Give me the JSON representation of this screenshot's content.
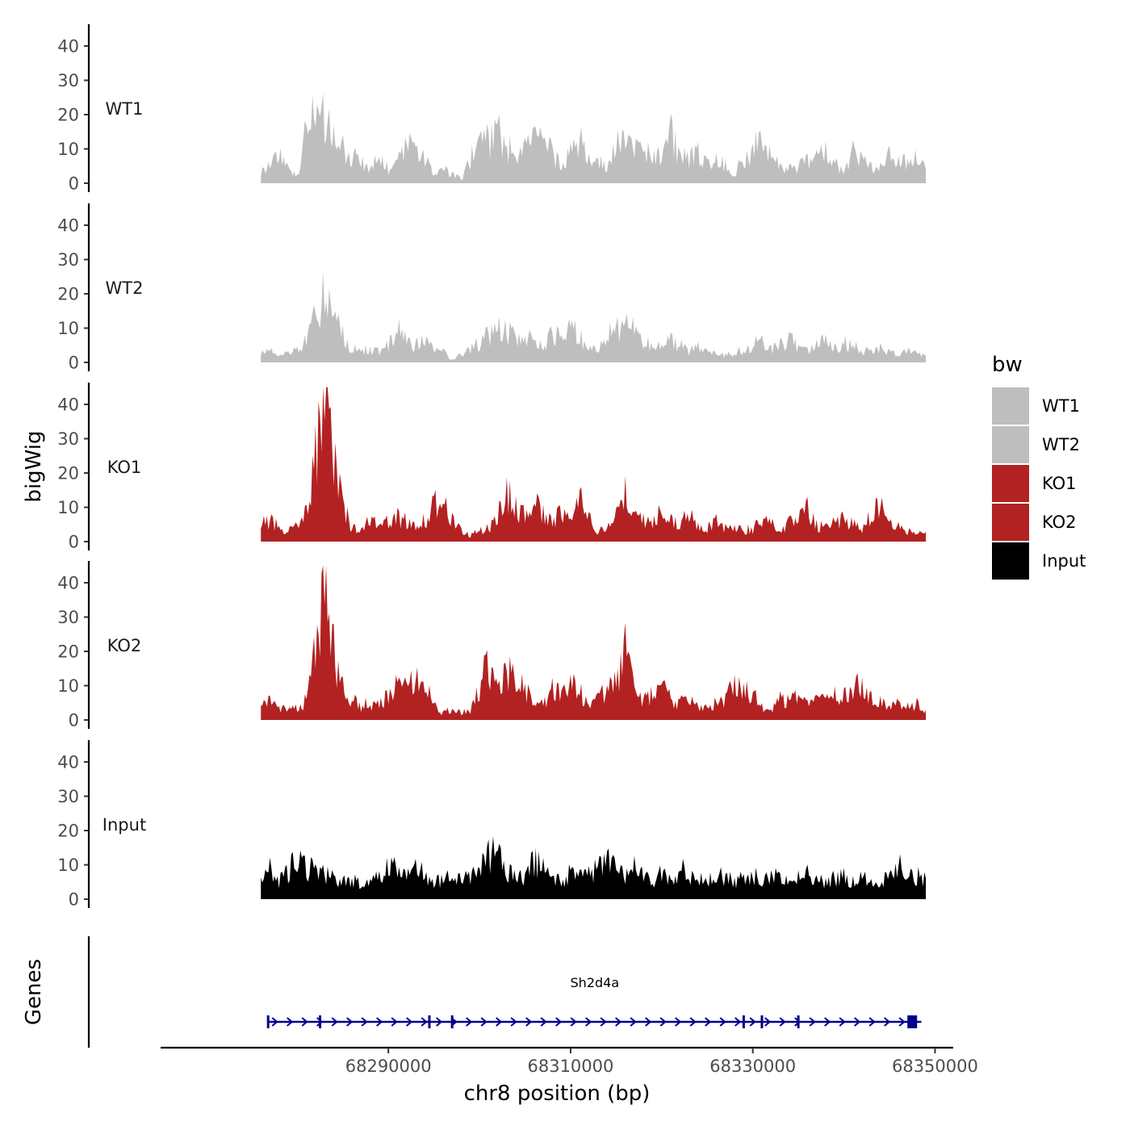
{
  "chart_data": {
    "type": "area",
    "title": "",
    "chromosome": "chr8",
    "xlabel": "chr8 position (bp)",
    "ylabel": "bigWig",
    "genes_label": "Genes",
    "xlim": [
      68265000,
      68352000
    ],
    "data_range": [
      68276000,
      68349000
    ],
    "ylim": [
      0,
      45
    ],
    "x_ticks": [
      68290000,
      68310000,
      68330000,
      68350000
    ],
    "x_tick_labels": [
      "68290000",
      "68310000",
      "68330000",
      "68350000"
    ],
    "y_ticks": [
      0,
      10,
      20,
      30,
      40
    ],
    "y_tick_labels": [
      "0",
      "10",
      "20",
      "30",
      "40"
    ],
    "legend": {
      "title": "bw",
      "position": "right",
      "items": [
        {
          "label": "WT1",
          "color": "#bebebe"
        },
        {
          "label": "WT2",
          "color": "#bebebe"
        },
        {
          "label": "KO1",
          "color": "#b22222"
        },
        {
          "label": "KO2",
          "color": "#b22222"
        },
        {
          "label": "Input",
          "color": "#000000"
        }
      ]
    },
    "series": [
      {
        "name": "WT1",
        "color": "#bebebe",
        "x": [
          68276000,
          68277000,
          68278000,
          68279000,
          68280000,
          68281000,
          68282000,
          68283000,
          68284000,
          68285000,
          68286000,
          68287000,
          68288000,
          68289000,
          68290000,
          68291000,
          68292000,
          68293000,
          68294000,
          68295000,
          68296000,
          68297000,
          68298000,
          68299000,
          68300000,
          68301000,
          68302000,
          68303000,
          68304000,
          68305000,
          68306000,
          68307000,
          68308000,
          68309000,
          68310000,
          68311000,
          68312000,
          68313000,
          68314000,
          68315000,
          68316000,
          68317000,
          68318000,
          68319000,
          68320000,
          68321000,
          68322000,
          68323000,
          68324000,
          68325000,
          68326000,
          68327000,
          68328000,
          68329000,
          68330000,
          68331000,
          68332000,
          68333000,
          68334000,
          68335000,
          68336000,
          68337000,
          68338000,
          68339000,
          68340000,
          68341000,
          68342000,
          68343000,
          68344000,
          68345000,
          68346000,
          68347000,
          68348000,
          68349000
        ],
        "values": [
          3,
          6,
          9,
          4,
          2,
          15,
          20,
          18,
          14,
          10,
          8,
          6,
          5,
          7,
          4,
          6,
          10,
          12,
          8,
          2,
          4,
          3,
          1,
          7,
          14,
          12,
          15,
          10,
          9,
          11,
          13,
          12,
          9,
          4,
          10,
          12,
          8,
          6,
          5,
          11,
          13,
          10,
          8,
          9,
          7,
          15,
          8,
          7,
          9,
          6,
          8,
          5,
          3,
          7,
          10,
          12,
          8,
          6,
          4,
          5,
          6,
          7,
          9,
          6,
          4,
          10,
          7,
          5,
          6,
          8,
          7,
          6,
          8,
          4
        ]
      },
      {
        "name": "WT2",
        "color": "#bebebe",
        "x": [
          68276000,
          68277000,
          68278000,
          68279000,
          68280000,
          68281000,
          68282000,
          68283000,
          68284000,
          68285000,
          68286000,
          68287000,
          68288000,
          68289000,
          68290000,
          68291000,
          68292000,
          68293000,
          68294000,
          68295000,
          68296000,
          68297000,
          68298000,
          68299000,
          68300000,
          68301000,
          68302000,
          68303000,
          68304000,
          68305000,
          68306000,
          68307000,
          68308000,
          68309000,
          68310000,
          68311000,
          68312000,
          68313000,
          68314000,
          68315000,
          68316000,
          68317000,
          68318000,
          68319000,
          68320000,
          68321000,
          68322000,
          68323000,
          68324000,
          68325000,
          68326000,
          68327000,
          68328000,
          68329000,
          68330000,
          68331000,
          68332000,
          68333000,
          68334000,
          68335000,
          68336000,
          68337000,
          68338000,
          68339000,
          68340000,
          68341000,
          68342000,
          68343000,
          68344000,
          68345000,
          68346000,
          68347000,
          68348000,
          68349000
        ],
        "values": [
          3,
          4,
          2,
          3,
          4,
          6,
          13,
          20,
          14,
          8,
          4,
          3,
          4,
          3,
          5,
          10,
          6,
          5,
          7,
          4,
          3,
          1,
          2,
          4,
          6,
          8,
          10,
          9,
          7,
          8,
          6,
          5,
          9,
          6,
          11,
          7,
          5,
          3,
          8,
          10,
          12,
          9,
          5,
          6,
          4,
          7,
          5,
          3,
          5,
          4,
          3,
          2,
          3,
          4,
          5,
          6,
          4,
          5,
          7,
          4,
          3,
          5,
          6,
          4,
          6,
          5,
          3,
          4,
          4,
          3,
          2,
          4,
          3,
          2
        ]
      },
      {
        "name": "KO1",
        "color": "#b22222",
        "x": [
          68276000,
          68277000,
          68278000,
          68279000,
          68280000,
          68281000,
          68282000,
          68283000,
          68284000,
          68285000,
          68286000,
          68287000,
          68288000,
          68289000,
          68290000,
          68291000,
          68292000,
          68293000,
          68294000,
          68295000,
          68296000,
          68297000,
          68298000,
          68299000,
          68300000,
          68301000,
          68302000,
          68303000,
          68304000,
          68305000,
          68306000,
          68307000,
          68308000,
          68309000,
          68310000,
          68311000,
          68312000,
          68313000,
          68314000,
          68315000,
          68316000,
          68317000,
          68318000,
          68319000,
          68320000,
          68321000,
          68322000,
          68323000,
          68324000,
          68325000,
          68326000,
          68327000,
          68328000,
          68329000,
          68330000,
          68331000,
          68332000,
          68333000,
          68334000,
          68335000,
          68336000,
          68337000,
          68338000,
          68339000,
          68340000,
          68341000,
          68342000,
          68343000,
          68344000,
          68345000,
          68346000,
          68347000,
          68348000,
          68349000
        ],
        "values": [
          5,
          6,
          4,
          3,
          5,
          8,
          25,
          44,
          22,
          10,
          4,
          3,
          8,
          4,
          6,
          7,
          6,
          5,
          6,
          10,
          13,
          6,
          3,
          2,
          3,
          4,
          8,
          14,
          10,
          8,
          12,
          9,
          6,
          8,
          10,
          12,
          7,
          3,
          4,
          7,
          16,
          8,
          6,
          5,
          10,
          7,
          6,
          8,
          5,
          4,
          6,
          4,
          5,
          3,
          4,
          5,
          7,
          3,
          6,
          8,
          9,
          5,
          4,
          6,
          7,
          5,
          4,
          8,
          10,
          5,
          4,
          3,
          2,
          3
        ]
      },
      {
        "name": "KO2",
        "color": "#b22222",
        "x": [
          68276000,
          68277000,
          68278000,
          68279000,
          68280000,
          68281000,
          68282000,
          68283000,
          68284000,
          68285000,
          68286000,
          68287000,
          68288000,
          68289000,
          68290000,
          68291000,
          68292000,
          68293000,
          68294000,
          68295000,
          68296000,
          68297000,
          68298000,
          68299000,
          68300000,
          68301000,
          68302000,
          68303000,
          68304000,
          68305000,
          68306000,
          68307000,
          68308000,
          68309000,
          68310000,
          68311000,
          68312000,
          68313000,
          68314000,
          68315000,
          68316000,
          68317000,
          68318000,
          68319000,
          68320000,
          68321000,
          68322000,
          68323000,
          68324000,
          68325000,
          68326000,
          68327000,
          68328000,
          68329000,
          68330000,
          68331000,
          68332000,
          68333000,
          68334000,
          68335000,
          68336000,
          68337000,
          68338000,
          68339000,
          68340000,
          68341000,
          68342000,
          68343000,
          68344000,
          68345000,
          68346000,
          68347000,
          68348000,
          68349000
        ],
        "values": [
          5,
          6,
          3,
          4,
          3,
          6,
          20,
          38,
          20,
          10,
          6,
          4,
          5,
          4,
          7,
          10,
          9,
          12,
          10,
          5,
          2,
          3,
          2,
          3,
          10,
          17,
          8,
          14,
          12,
          8,
          6,
          5,
          9,
          7,
          10,
          8,
          5,
          6,
          9,
          12,
          20,
          8,
          6,
          7,
          9,
          6,
          5,
          6,
          4,
          3,
          5,
          6,
          12,
          10,
          7,
          4,
          3,
          6,
          5,
          7,
          4,
          6,
          5,
          7,
          8,
          9,
          10,
          6,
          5,
          4,
          5,
          4,
          5,
          3
        ]
      },
      {
        "name": "Input",
        "color": "#000000",
        "x": [
          68276000,
          68277000,
          68278000,
          68279000,
          68280000,
          68281000,
          68282000,
          68283000,
          68284000,
          68285000,
          68286000,
          68287000,
          68288000,
          68289000,
          68290000,
          68291000,
          68292000,
          68293000,
          68294000,
          68295000,
          68296000,
          68297000,
          68298000,
          68299000,
          68300000,
          68301000,
          68302000,
          68303000,
          68304000,
          68305000,
          68306000,
          68307000,
          68308000,
          68309000,
          68310000,
          68311000,
          68312000,
          68313000,
          68314000,
          68315000,
          68316000,
          68317000,
          68318000,
          68319000,
          68320000,
          68321000,
          68322000,
          68323000,
          68324000,
          68325000,
          68326000,
          68327000,
          68328000,
          68329000,
          68330000,
          68331000,
          68332000,
          68333000,
          68334000,
          68335000,
          68336000,
          68337000,
          68338000,
          68339000,
          68340000,
          68341000,
          68342000,
          68343000,
          68344000,
          68345000,
          68346000,
          68347000,
          68348000,
          68349000
        ],
        "values": [
          7,
          9,
          5,
          8,
          12,
          9,
          10,
          7,
          6,
          5,
          6,
          4,
          5,
          6,
          10,
          8,
          6,
          9,
          7,
          5,
          6,
          8,
          5,
          7,
          9,
          13,
          14,
          8,
          6,
          7,
          11,
          9,
          6,
          5,
          8,
          6,
          7,
          9,
          11,
          8,
          6,
          9,
          7,
          5,
          8,
          6,
          9,
          7,
          6,
          5,
          7,
          6,
          5,
          6,
          7,
          5,
          6,
          8,
          5,
          6,
          7,
          6,
          5,
          6,
          7,
          5,
          6,
          5,
          4,
          8,
          12,
          6,
          7,
          6
        ]
      }
    ],
    "genes": [
      {
        "name": "Sh2d4a",
        "start": 68276800,
        "end": 68348500,
        "strand": "+",
        "exons": [
          68276800,
          68282500,
          68294500,
          68297000,
          68329000,
          68331000,
          68335000,
          68347500
        ]
      }
    ]
  }
}
